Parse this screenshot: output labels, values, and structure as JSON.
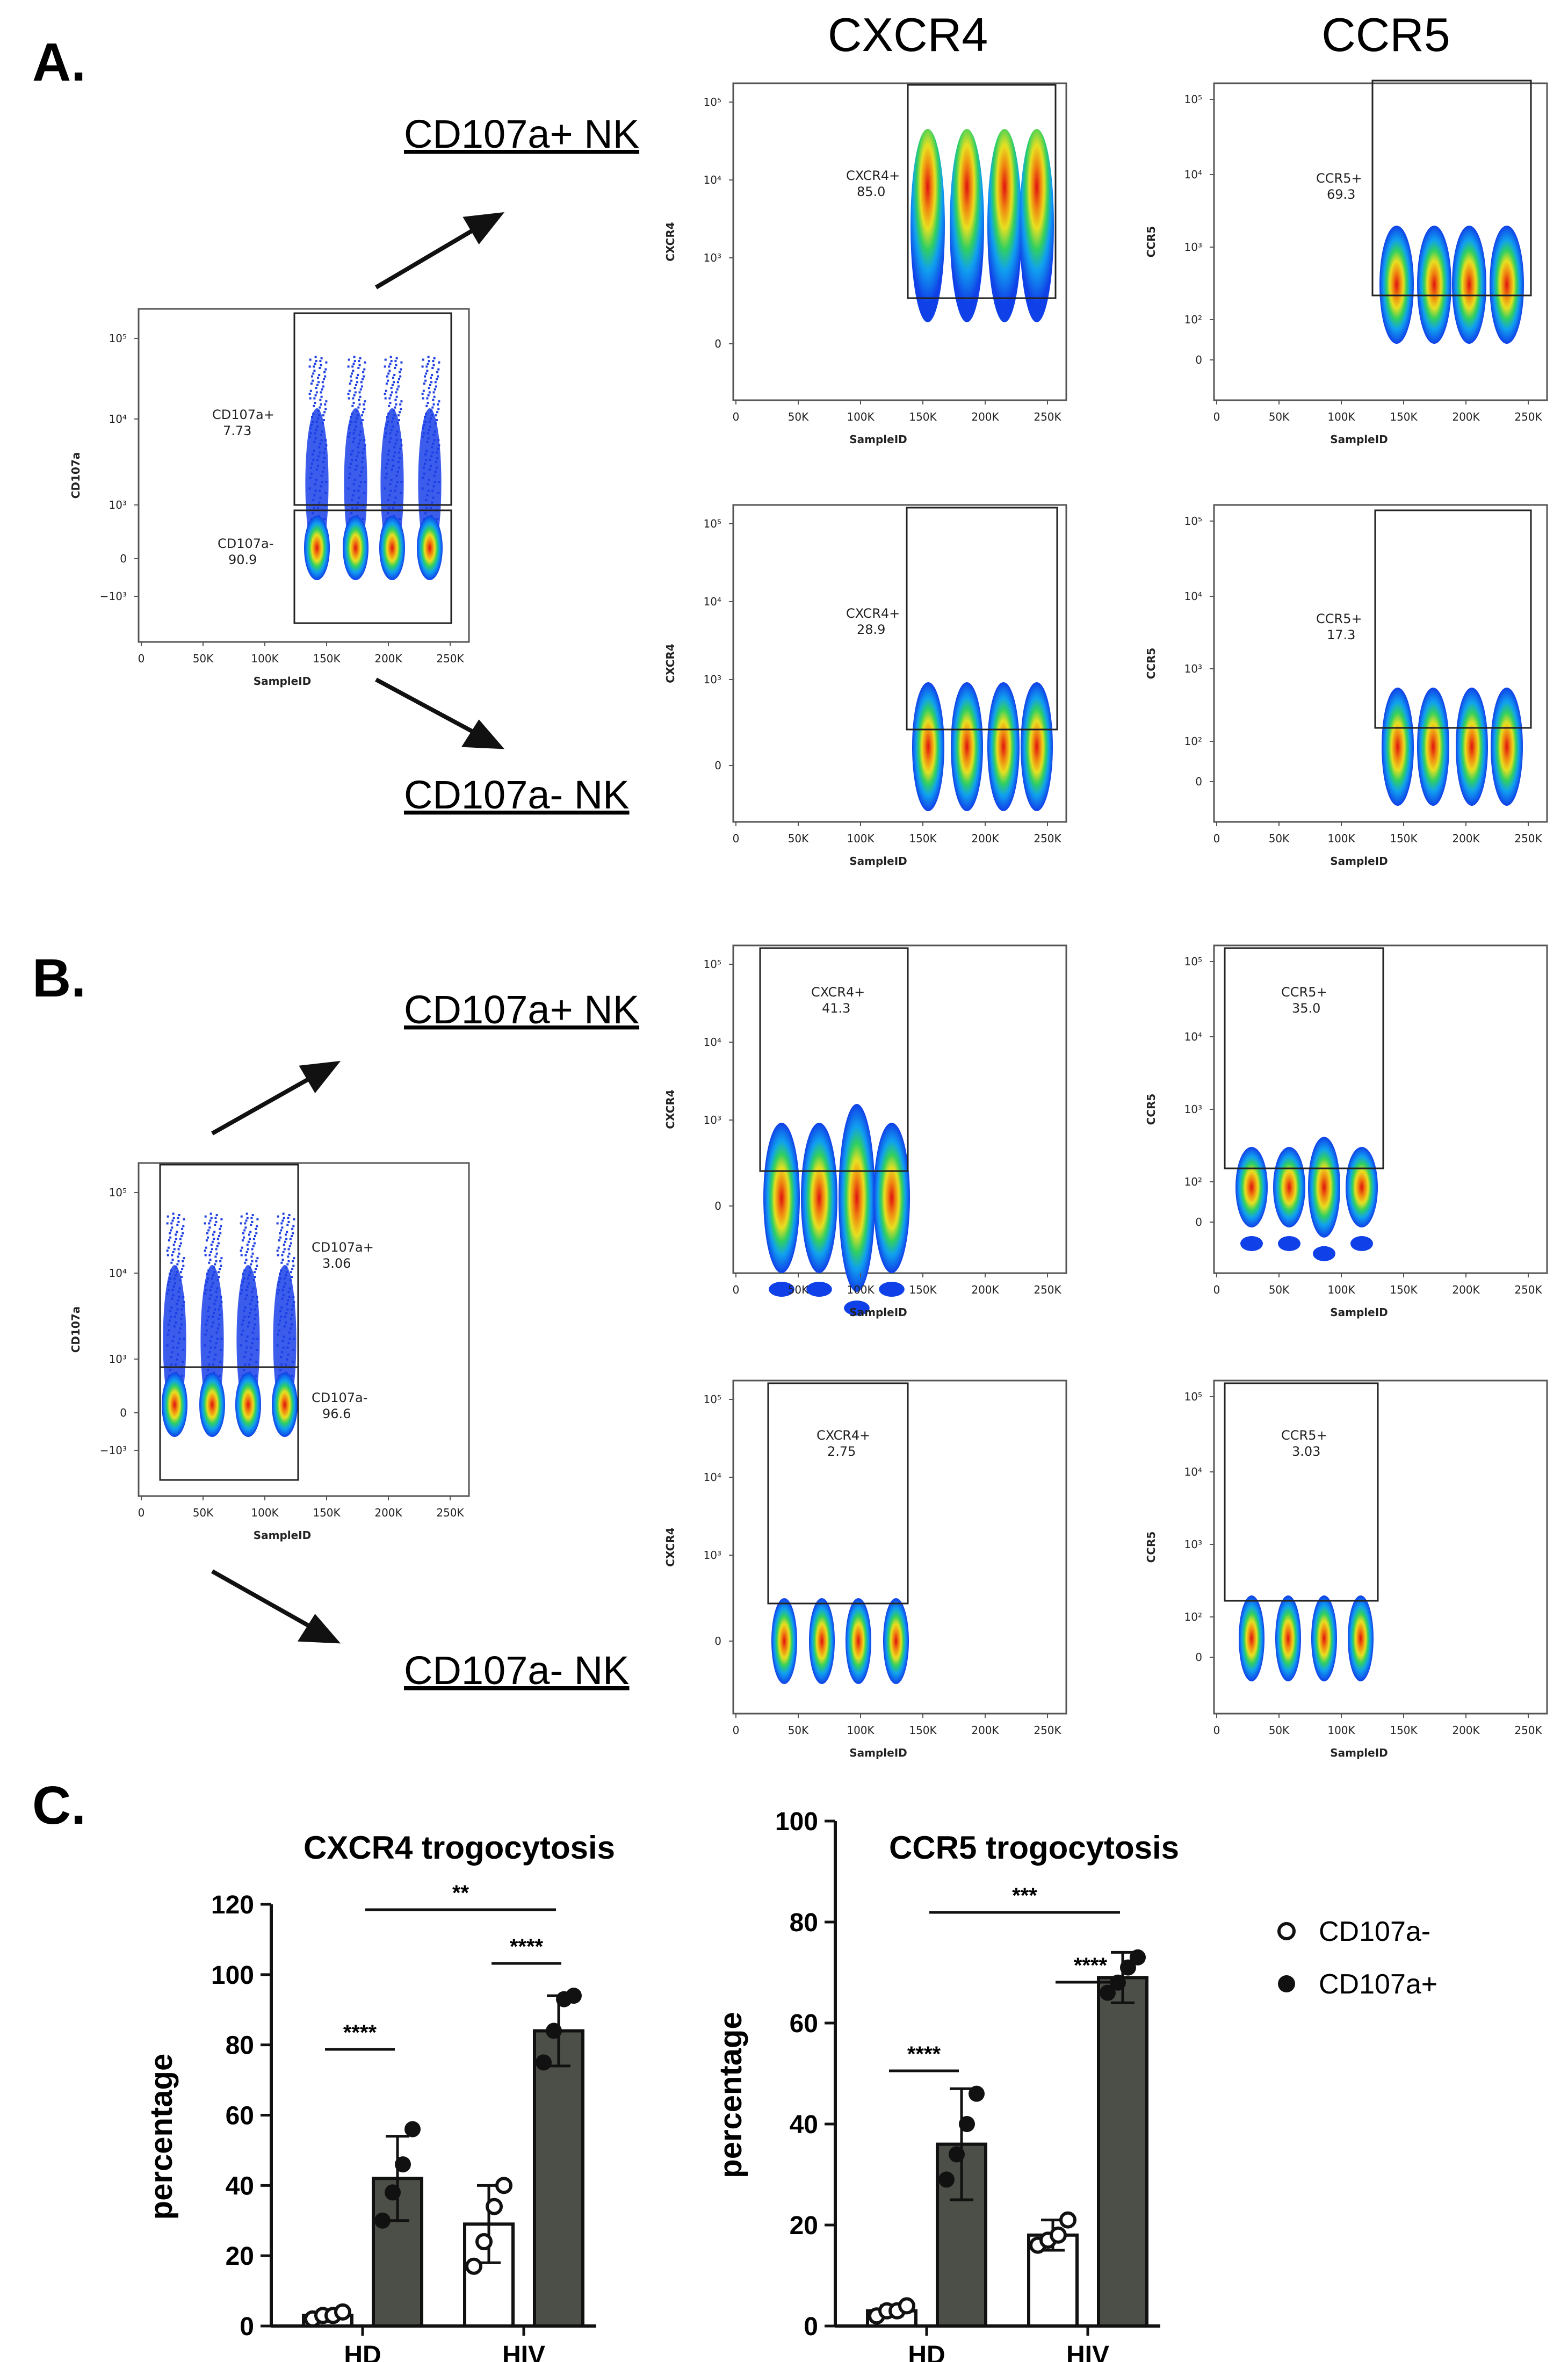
{
  "panel_labels": [
    "A.",
    "B.",
    "C."
  ],
  "column_headers": [
    "CXCR4",
    "CCR5"
  ],
  "population_labels": {
    "a_pos": "CD107a+ NK",
    "a_neg": "CD107a- NK",
    "b_pos": "CD107a+ NK",
    "b_neg": "CD107a- NK"
  },
  "flow_axis": {
    "x_label": "SampleID",
    "x_ticks": [
      "0",
      "50K",
      "100K",
      "150K",
      "200K",
      "250K"
    ],
    "y_ticks_cd107a": [
      "10⁵",
      "10⁴",
      "10³",
      "0",
      "−10³"
    ],
    "y_ticks_cxcr4": [
      "10⁵",
      "10⁴",
      "10³",
      "0"
    ],
    "y_ticks_ccr5": [
      "10⁵",
      "10⁴",
      "10³",
      "10²",
      "0"
    ]
  },
  "flow_plots": [
    {
      "id": "A-cd107a",
      "y_label": "CD107a",
      "gates": [
        {
          "name": "CD107a+",
          "value": "7.73"
        },
        {
          "name": "CD107a-",
          "value": "90.9"
        }
      ]
    },
    {
      "id": "A-cxcr4-pos",
      "y_label": "CXCR4",
      "gates": [
        {
          "name": "CXCR4+",
          "value": "85.0"
        }
      ]
    },
    {
      "id": "A-ccr5-pos",
      "y_label": "CCR5",
      "gates": [
        {
          "name": "CCR5+",
          "value": "69.3"
        }
      ]
    },
    {
      "id": "A-cxcr4-neg",
      "y_label": "CXCR4",
      "gates": [
        {
          "name": "CXCR4+",
          "value": "28.9"
        }
      ]
    },
    {
      "id": "A-ccr5-neg",
      "y_label": "CCR5",
      "gates": [
        {
          "name": "CCR5+",
          "value": "17.3"
        }
      ]
    },
    {
      "id": "B-cd107a",
      "y_label": "CD107a",
      "gates": [
        {
          "name": "CD107a+",
          "value": "3.06"
        },
        {
          "name": "CD107a-",
          "value": "96.6"
        }
      ]
    },
    {
      "id": "B-cxcr4-pos",
      "y_label": "CXCR4",
      "gates": [
        {
          "name": "CXCR4+",
          "value": "41.3"
        }
      ]
    },
    {
      "id": "B-ccr5-pos",
      "y_label": "CCR5",
      "gates": [
        {
          "name": "CCR5+",
          "value": "35.0"
        }
      ]
    },
    {
      "id": "B-cxcr4-neg",
      "y_label": "CXCR4",
      "gates": [
        {
          "name": "CXCR4+",
          "value": "2.75"
        }
      ]
    },
    {
      "id": "B-ccr5-neg",
      "y_label": "CCR5",
      "gates": [
        {
          "name": "CCR5+",
          "value": "3.03"
        }
      ]
    }
  ],
  "legend": {
    "open": "CD107a-",
    "filled": "CD107a+"
  },
  "colors": {
    "bar_pos": "#4b4f47",
    "bar_neg": "#ffffff",
    "stroke": "#111111"
  },
  "chart_data": [
    {
      "type": "bar",
      "title": "CXCR4 trogocytosis",
      "ylabel": "percentage",
      "xlabel": "",
      "ylim": [
        0,
        120
      ],
      "yticks": [
        0,
        20,
        40,
        60,
        80,
        100,
        120
      ],
      "categories": [
        "HD",
        "HIV"
      ],
      "series": [
        {
          "name": "CD107a-",
          "values": [
            3,
            29
          ],
          "sd": [
            1,
            11
          ],
          "points": [
            [
              2,
              3,
              3,
              4
            ],
            [
              17,
              24,
              34,
              40
            ]
          ]
        },
        {
          "name": "CD107a+",
          "values": [
            42,
            84
          ],
          "sd": [
            12,
            10
          ],
          "points": [
            [
              30,
              38,
              46,
              56
            ],
            [
              75,
              84,
              93,
              94
            ]
          ]
        }
      ],
      "significance": [
        {
          "label": "****",
          "between": "HD CD107a- vs HD CD107a+"
        },
        {
          "label": "****",
          "between": "HIV CD107a- vs HIV CD107a+"
        },
        {
          "label": "**",
          "between": "HD CD107a+ vs HIV CD107a-"
        }
      ]
    },
    {
      "type": "bar",
      "title": "CCR5 trogocytosis",
      "ylabel": "percentage",
      "xlabel": "",
      "ylim": [
        0,
        100
      ],
      "yticks": [
        0,
        20,
        40,
        60,
        80,
        100
      ],
      "categories": [
        "HD",
        "HIV"
      ],
      "series": [
        {
          "name": "CD107a-",
          "values": [
            3,
            18
          ],
          "sd": [
            1,
            3
          ],
          "points": [
            [
              2,
              3,
              3,
              4
            ],
            [
              16,
              17,
              18,
              21
            ]
          ]
        },
        {
          "name": "CD107a+",
          "values": [
            36,
            69
          ],
          "sd": [
            11,
            5
          ],
          "points": [
            [
              29,
              34,
              40,
              46
            ],
            [
              66,
              68,
              71,
              73
            ]
          ]
        }
      ],
      "significance": [
        {
          "label": "****",
          "between": "HD CD107a- vs HD CD107a+"
        },
        {
          "label": "****",
          "between": "HIV CD107a- vs HIV CD107a+"
        },
        {
          "label": "***",
          "between": "HD CD107a+ vs HIV CD107a-"
        }
      ]
    }
  ]
}
